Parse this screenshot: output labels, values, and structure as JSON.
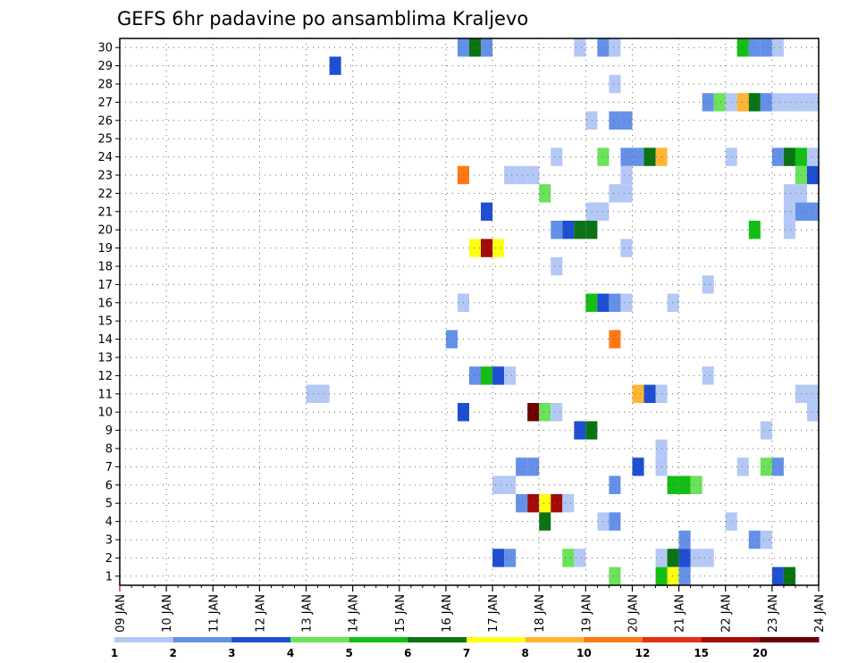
{
  "chart_data": {
    "type": "heatmap",
    "title": "GEFS 6hr padavine po ansamblima Kraljevo",
    "xlabel": "",
    "ylabel": "",
    "x_ticks": [
      "09 JAN",
      "10 JAN",
      "11 JAN",
      "12 JAN",
      "13 JAN",
      "14 JAN",
      "15 JAN",
      "16 JAN",
      "17 JAN",
      "18 JAN",
      "19 JAN",
      "20 JAN",
      "21 JAN",
      "22 JAN",
      "23 JAN",
      "24 JAN"
    ],
    "y_ticks": [
      "1",
      "2",
      "3",
      "4",
      "5",
      "6",
      "7",
      "8",
      "9",
      "10",
      "11",
      "12",
      "13",
      "14",
      "15",
      "16",
      "17",
      "18",
      "19",
      "20",
      "21",
      "22",
      "23",
      "24",
      "25",
      "26",
      "27",
      "28",
      "29",
      "30"
    ],
    "x_range": [
      "09 JAN 00Z",
      "24 JAN 00Z"
    ],
    "y_range": [
      1,
      30
    ],
    "grid": true,
    "legend": {
      "position": "bottom",
      "levels": [
        "1",
        "2",
        "3",
        "4",
        "5",
        "6",
        "7",
        "8",
        "10",
        "12",
        "15",
        "20",
        ""
      ],
      "colors": [
        "#b4c8f5",
        "#6490e8",
        "#1e4ed2",
        "#6ae25a",
        "#14be14",
        "#0a7314",
        "#ffff14",
        "#ffb432",
        "#ff7814",
        "#e13214",
        "#a50a0a",
        "#6e0000"
      ]
    },
    "cells": [
      {
        "m": 30,
        "d": "16 JAN 06Z",
        "v": 2
      },
      {
        "m": 30,
        "d": "16 JAN 12Z",
        "v": 6
      },
      {
        "m": 30,
        "d": "16 JAN 18Z",
        "v": 2
      },
      {
        "m": 30,
        "d": "18 JAN 18Z",
        "v": 1
      },
      {
        "m": 30,
        "d": "19 JAN 06Z",
        "v": 2
      },
      {
        "m": 30,
        "d": "19 JAN 12Z",
        "v": 1
      },
      {
        "m": 30,
        "d": "22 JAN 06Z",
        "v": 5
      },
      {
        "m": 30,
        "d": "22 JAN 12Z",
        "v": 2
      },
      {
        "m": 30,
        "d": "22 JAN 18Z",
        "v": 2
      },
      {
        "m": 30,
        "d": "23 JAN 00Z",
        "v": 1
      },
      {
        "m": 29,
        "d": "13 JAN 12Z",
        "v": 3
      },
      {
        "m": 28,
        "d": "19 JAN 12Z",
        "v": 1
      },
      {
        "m": 27,
        "d": "21 JAN 12Z",
        "v": 2
      },
      {
        "m": 27,
        "d": "21 JAN 18Z",
        "v": 4
      },
      {
        "m": 27,
        "d": "22 JAN 00Z",
        "v": 1
      },
      {
        "m": 27,
        "d": "22 JAN 06Z",
        "v": 8
      },
      {
        "m": 27,
        "d": "22 JAN 12Z",
        "v": 6
      },
      {
        "m": 27,
        "d": "22 JAN 18Z",
        "v": 2
      },
      {
        "m": 27,
        "d": "23 JAN 00Z",
        "v": 1
      },
      {
        "m": 27,
        "d": "23 JAN 06Z",
        "v": 1
      },
      {
        "m": 27,
        "d": "23 JAN 12Z",
        "v": 1
      },
      {
        "m": 27,
        "d": "23 JAN 18Z",
        "v": 1
      },
      {
        "m": 26,
        "d": "19 JAN 00Z",
        "v": 1
      },
      {
        "m": 26,
        "d": "19 JAN 12Z",
        "v": 2
      },
      {
        "m": 26,
        "d": "19 JAN 18Z",
        "v": 2
      },
      {
        "m": 24,
        "d": "18 JAN 06Z",
        "v": 1
      },
      {
        "m": 24,
        "d": "19 JAN 06Z",
        "v": 4
      },
      {
        "m": 24,
        "d": "19 JAN 18Z",
        "v": 2
      },
      {
        "m": 24,
        "d": "20 JAN 00Z",
        "v": 2
      },
      {
        "m": 24,
        "d": "20 JAN 06Z",
        "v": 6
      },
      {
        "m": 24,
        "d": "20 JAN 12Z",
        "v": 8
      },
      {
        "m": 24,
        "d": "22 JAN 00Z",
        "v": 1
      },
      {
        "m": 24,
        "d": "23 JAN 00Z",
        "v": 2
      },
      {
        "m": 24,
        "d": "23 JAN 06Z",
        "v": 6
      },
      {
        "m": 24,
        "d": "23 JAN 12Z",
        "v": 5
      },
      {
        "m": 24,
        "d": "23 JAN 18Z",
        "v": 1
      },
      {
        "m": 23,
        "d": "16 JAN 06Z",
        "v": 10
      },
      {
        "m": 23,
        "d": "17 JAN 06Z",
        "v": 1
      },
      {
        "m": 23,
        "d": "17 JAN 12Z",
        "v": 1
      },
      {
        "m": 23,
        "d": "17 JAN 18Z",
        "v": 1
      },
      {
        "m": 23,
        "d": "19 JAN 18Z",
        "v": 1
      },
      {
        "m": 23,
        "d": "23 JAN 12Z",
        "v": 4
      },
      {
        "m": 23,
        "d": "23 JAN 18Z",
        "v": 3
      },
      {
        "m": 22,
        "d": "18 JAN 00Z",
        "v": 4
      },
      {
        "m": 22,
        "d": "19 JAN 12Z",
        "v": 1
      },
      {
        "m": 22,
        "d": "19 JAN 18Z",
        "v": 1
      },
      {
        "m": 22,
        "d": "23 JAN 06Z",
        "v": 1
      },
      {
        "m": 22,
        "d": "23 JAN 12Z",
        "v": 1
      },
      {
        "m": 21,
        "d": "16 JAN 18Z",
        "v": 3
      },
      {
        "m": 21,
        "d": "19 JAN 00Z",
        "v": 1
      },
      {
        "m": 21,
        "d": "19 JAN 06Z",
        "v": 1
      },
      {
        "m": 21,
        "d": "23 JAN 06Z",
        "v": 1
      },
      {
        "m": 21,
        "d": "23 JAN 12Z",
        "v": 2
      },
      {
        "m": 21,
        "d": "23 JAN 18Z",
        "v": 2
      },
      {
        "m": 20,
        "d": "18 JAN 06Z",
        "v": 2
      },
      {
        "m": 20,
        "d": "18 JAN 12Z",
        "v": 3
      },
      {
        "m": 20,
        "d": "18 JAN 18Z",
        "v": 6
      },
      {
        "m": 20,
        "d": "19 JAN 00Z",
        "v": 6
      },
      {
        "m": 20,
        "d": "22 JAN 12Z",
        "v": 5
      },
      {
        "m": 20,
        "d": "23 JAN 06Z",
        "v": 1
      },
      {
        "m": 19,
        "d": "16 JAN 12Z",
        "v": 7
      },
      {
        "m": 19,
        "d": "16 JAN 18Z",
        "v": 15
      },
      {
        "m": 19,
        "d": "17 JAN 00Z",
        "v": 7
      },
      {
        "m": 19,
        "d": "19 JAN 18Z",
        "v": 1
      },
      {
        "m": 18,
        "d": "18 JAN 06Z",
        "v": 1
      },
      {
        "m": 17,
        "d": "21 JAN 12Z",
        "v": 1
      },
      {
        "m": 16,
        "d": "16 JAN 06Z",
        "v": 1
      },
      {
        "m": 16,
        "d": "19 JAN 00Z",
        "v": 5
      },
      {
        "m": 16,
        "d": "19 JAN 06Z",
        "v": 3
      },
      {
        "m": 16,
        "d": "19 JAN 12Z",
        "v": 2
      },
      {
        "m": 16,
        "d": "19 JAN 18Z",
        "v": 1
      },
      {
        "m": 16,
        "d": "20 JAN 18Z",
        "v": 1
      },
      {
        "m": 14,
        "d": "16 JAN 00Z",
        "v": 2
      },
      {
        "m": 14,
        "d": "19 JAN 12Z",
        "v": 10
      },
      {
        "m": 12,
        "d": "16 JAN 12Z",
        "v": 2
      },
      {
        "m": 12,
        "d": "16 JAN 18Z",
        "v": 5
      },
      {
        "m": 12,
        "d": "17 JAN 00Z",
        "v": 3
      },
      {
        "m": 12,
        "d": "17 JAN 06Z",
        "v": 1
      },
      {
        "m": 12,
        "d": "21 JAN 12Z",
        "v": 1
      },
      {
        "m": 11,
        "d": "13 JAN 00Z",
        "v": 1
      },
      {
        "m": 11,
        "d": "13 JAN 06Z",
        "v": 1
      },
      {
        "m": 11,
        "d": "20 JAN 00Z",
        "v": 8
      },
      {
        "m": 11,
        "d": "20 JAN 06Z",
        "v": 3
      },
      {
        "m": 11,
        "d": "20 JAN 12Z",
        "v": 1
      },
      {
        "m": 11,
        "d": "23 JAN 12Z",
        "v": 1
      },
      {
        "m": 11,
        "d": "23 JAN 18Z",
        "v": 1
      },
      {
        "m": 10,
        "d": "16 JAN 06Z",
        "v": 3
      },
      {
        "m": 10,
        "d": "17 JAN 18Z",
        "v": 20
      },
      {
        "m": 10,
        "d": "18 JAN 00Z",
        "v": 4
      },
      {
        "m": 10,
        "d": "18 JAN 06Z",
        "v": 1
      },
      {
        "m": 10,
        "d": "23 JAN 18Z",
        "v": 1
      },
      {
        "m": 9,
        "d": "18 JAN 18Z",
        "v": 3
      },
      {
        "m": 9,
        "d": "19 JAN 00Z",
        "v": 6
      },
      {
        "m": 9,
        "d": "22 JAN 18Z",
        "v": 1
      },
      {
        "m": 8,
        "d": "20 JAN 12Z",
        "v": 1
      },
      {
        "m": 7,
        "d": "17 JAN 12Z",
        "v": 2
      },
      {
        "m": 7,
        "d": "17 JAN 18Z",
        "v": 2
      },
      {
        "m": 7,
        "d": "20 JAN 00Z",
        "v": 3
      },
      {
        "m": 7,
        "d": "20 JAN 12Z",
        "v": 1
      },
      {
        "m": 7,
        "d": "22 JAN 06Z",
        "v": 1
      },
      {
        "m": 7,
        "d": "22 JAN 18Z",
        "v": 4
      },
      {
        "m": 7,
        "d": "23 JAN 00Z",
        "v": 2
      },
      {
        "m": 6,
        "d": "17 JAN 00Z",
        "v": 1
      },
      {
        "m": 6,
        "d": "17 JAN 06Z",
        "v": 1
      },
      {
        "m": 6,
        "d": "19 JAN 12Z",
        "v": 2
      },
      {
        "m": 6,
        "d": "20 JAN 18Z",
        "v": 5
      },
      {
        "m": 6,
        "d": "21 JAN 00Z",
        "v": 5
      },
      {
        "m": 6,
        "d": "21 JAN 06Z",
        "v": 4
      },
      {
        "m": 5,
        "d": "17 JAN 12Z",
        "v": 2
      },
      {
        "m": 5,
        "d": "17 JAN 18Z",
        "v": 15
      },
      {
        "m": 5,
        "d": "18 JAN 00Z",
        "v": 7
      },
      {
        "m": 5,
        "d": "18 JAN 06Z",
        "v": 15
      },
      {
        "m": 5,
        "d": "18 JAN 12Z",
        "v": 1
      },
      {
        "m": 4,
        "d": "18 JAN 00Z",
        "v": 6
      },
      {
        "m": 4,
        "d": "19 JAN 06Z",
        "v": 1
      },
      {
        "m": 4,
        "d": "19 JAN 12Z",
        "v": 2
      },
      {
        "m": 4,
        "d": "22 JAN 00Z",
        "v": 1
      },
      {
        "m": 3,
        "d": "21 JAN 00Z",
        "v": 2
      },
      {
        "m": 3,
        "d": "22 JAN 12Z",
        "v": 2
      },
      {
        "m": 3,
        "d": "22 JAN 18Z",
        "v": 1
      },
      {
        "m": 2,
        "d": "17 JAN 00Z",
        "v": 3
      },
      {
        "m": 2,
        "d": "17 JAN 06Z",
        "v": 2
      },
      {
        "m": 2,
        "d": "18 JAN 12Z",
        "v": 4
      },
      {
        "m": 2,
        "d": "18 JAN 18Z",
        "v": 1
      },
      {
        "m": 2,
        "d": "20 JAN 12Z",
        "v": 1
      },
      {
        "m": 2,
        "d": "20 JAN 18Z",
        "v": 6
      },
      {
        "m": 2,
        "d": "21 JAN 00Z",
        "v": 3
      },
      {
        "m": 2,
        "d": "21 JAN 06Z",
        "v": 1
      },
      {
        "m": 2,
        "d": "21 JAN 12Z",
        "v": 1
      },
      {
        "m": 1,
        "d": "19 JAN 12Z",
        "v": 4
      },
      {
        "m": 1,
        "d": "20 JAN 12Z",
        "v": 5
      },
      {
        "m": 1,
        "d": "20 JAN 18Z",
        "v": 7
      },
      {
        "m": 1,
        "d": "21 JAN 00Z",
        "v": 2
      },
      {
        "m": 1,
        "d": "23 JAN 00Z",
        "v": 3
      },
      {
        "m": 1,
        "d": "23 JAN 06Z",
        "v": 6
      }
    ]
  }
}
